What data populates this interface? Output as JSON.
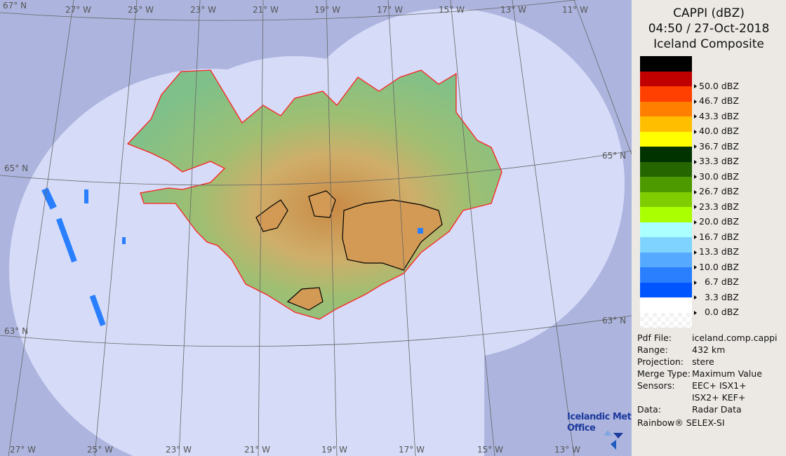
{
  "header": {
    "line1": "CAPPI (dBZ)",
    "line2": "04:50 / 27-Oct-2018",
    "line3": "Iceland Composite"
  },
  "legend": [
    {
      "label": "",
      "color": "#000000"
    },
    {
      "label": "50.0 dBZ",
      "color": "#c00000"
    },
    {
      "label": "46.7 dBZ",
      "color": "#ff4000"
    },
    {
      "label": "43.3 dBZ",
      "color": "#ff7f00"
    },
    {
      "label": "40.0 dBZ",
      "color": "#ffbf00"
    },
    {
      "label": "36.7 dBZ",
      "color": "#ffff00"
    },
    {
      "label": "33.3 dBZ",
      "color": "#003300"
    },
    {
      "label": "30.0 dBZ",
      "color": "#266600"
    },
    {
      "label": "26.7 dBZ",
      "color": "#4c9900"
    },
    {
      "label": "23.3 dBZ",
      "color": "#7fcc00"
    },
    {
      "label": "20.0 dBZ",
      "color": "#aaff00"
    },
    {
      "label": "16.7 dBZ",
      "color": "#aaffff"
    },
    {
      "label": "13.3 dBZ",
      "color": "#7fd4ff"
    },
    {
      "label": "10.0 dBZ",
      "color": "#55aaff"
    },
    {
      "label": "  6.7 dBZ",
      "color": "#2a7fff"
    },
    {
      "label": "  3.3 dBZ",
      "color": "#0055ff"
    },
    {
      "label": "  0.0 dBZ",
      "color": "#ffffff"
    }
  ],
  "info": [
    {
      "key": "Pdf File:",
      "value": "iceland.comp.cappi"
    },
    {
      "key": "Range:",
      "value": "432 km"
    },
    {
      "key": "Projection:",
      "value": "stere"
    },
    {
      "key": "Merge Type:",
      "value": "Maximum Value"
    },
    {
      "key": "Sensors:",
      "value": "EEC+ ISX1+"
    },
    {
      "key": "",
      "value": "ISX2+ KEF+"
    },
    {
      "key": "Data:",
      "value": "Radar Data"
    }
  ],
  "credit": "Rainbow® SELEX-SI",
  "logo": {
    "line1": "Icelandic Met",
    "line2": "Office"
  },
  "map": {
    "top_lon_labels": [
      "27° W",
      "25° W",
      "23° W",
      "21° W",
      "19° W",
      "17° W",
      "15° W",
      "13° W",
      "11° W"
    ],
    "bottom_lon_labels": [
      "27° W",
      "25° W",
      "23° W",
      "21° W",
      "19° W",
      "17° W",
      "15° W",
      "13° W"
    ],
    "lat_labels_left": [
      "67° N",
      "65° N",
      "63° N"
    ],
    "lat_labels_right": [
      "65° N",
      "63° N"
    ],
    "colors": {
      "background": "#adb5df",
      "coverage": "#d6dcf8",
      "coastline": "#ff2020"
    }
  }
}
